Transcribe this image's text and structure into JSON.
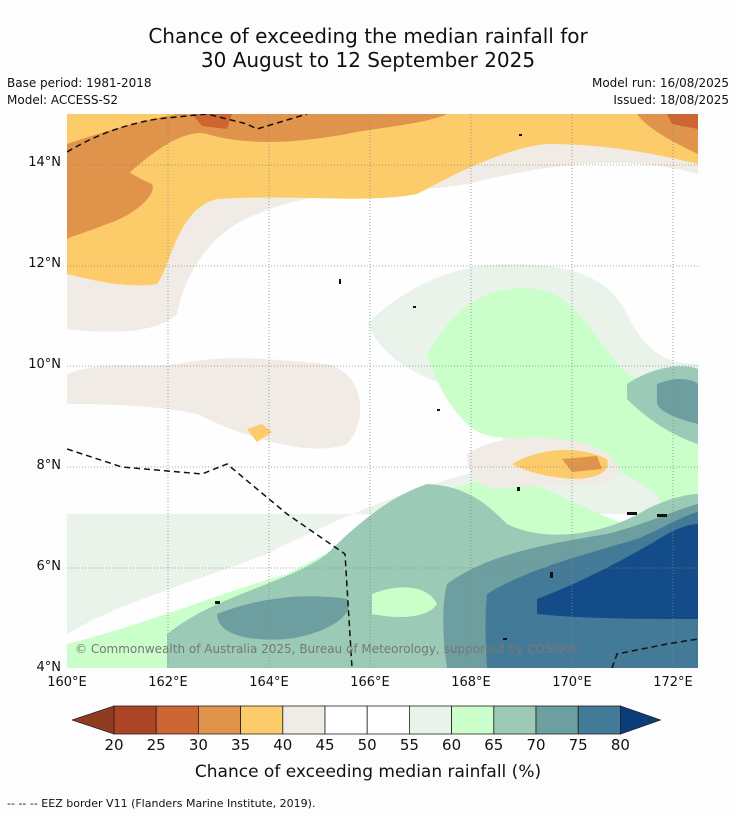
{
  "title": {
    "line1": "Chance of exceeding the median rainfall for",
    "line2": "30 August to 12 September 2025"
  },
  "meta": {
    "base_period": "Base period: 1981-2018",
    "model": "Model: ACCESS-S2",
    "model_run": "Model run: 16/08/2025",
    "issued": "Issued: 18/08/2025"
  },
  "map": {
    "lat_labels": [
      "14°N",
      "12°N",
      "10°N",
      "8°N",
      "6°N",
      "4°N"
    ],
    "lon_labels": [
      "160°E",
      "162°E",
      "164°E",
      "166°E",
      "168°E",
      "170°E",
      "172°E"
    ],
    "lat_values": [
      14,
      12,
      10,
      8,
      6,
      4
    ],
    "lon_values": [
      160,
      162,
      164,
      166,
      168,
      170,
      172
    ],
    "extent": {
      "lon": [
        160,
        172.5
      ],
      "lat": [
        4,
        15
      ]
    },
    "copyright": "© Commonwealth of Australia 2025, Bureau of Meteorology, supported by COSPPac",
    "eez_border_style": "dashed"
  },
  "colorbar": {
    "title": "Chance of exceeding median rainfall (%)",
    "ticks": [
      "20",
      "25",
      "30",
      "35",
      "40",
      "45",
      "50",
      "55",
      "60",
      "65",
      "70",
      "75",
      "80"
    ],
    "colors": [
      "#ad4423",
      "#cc6532",
      "#e0934b",
      "#fdcc6a",
      "#f1ebe6",
      "#ffffff",
      "#ffffff",
      "#eaf3ea",
      "#caffca",
      "#9bcbb6",
      "#6d9fa0",
      "#437a97",
      "#134c89"
    ],
    "under_color": "#8e3b1e",
    "over_color": "#0b3d7a"
  },
  "legend": {
    "eez": "--  --  -- EEZ border V11 (Flanders Marine Institute, 2019)."
  }
}
